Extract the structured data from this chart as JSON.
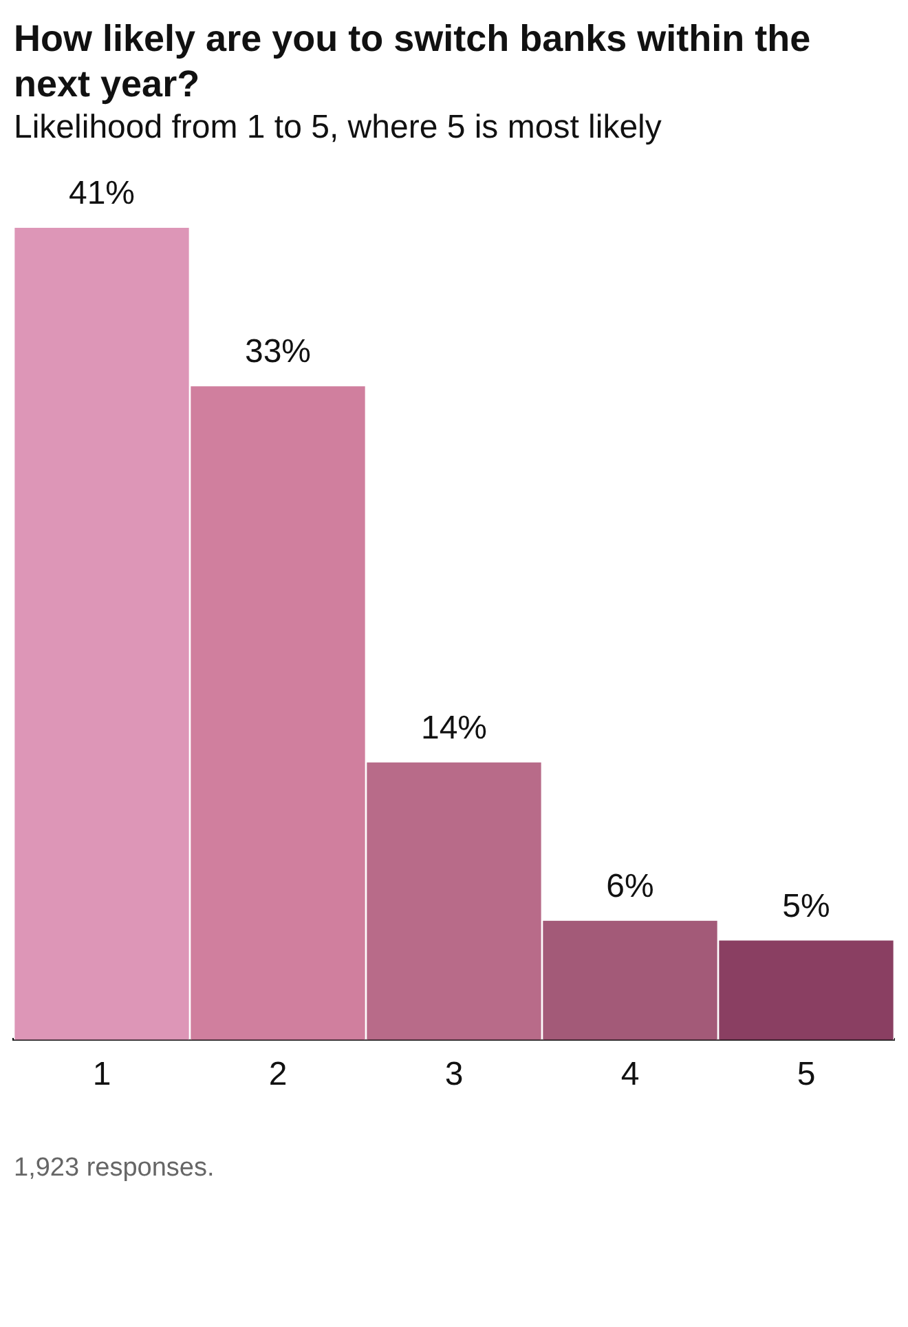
{
  "chart_data": {
    "type": "bar",
    "title": "How likely are you to switch banks within the next year?",
    "subtitle": "Likelihood from 1 to 5, where 5 is most likely",
    "categories": [
      "1",
      "2",
      "3",
      "4",
      "5"
    ],
    "values": [
      41,
      33,
      14,
      6,
      5
    ],
    "colors": [
      "#dd96b7",
      "#d07f9e",
      "#b86b89",
      "#a35a78",
      "#8a3f62"
    ],
    "value_labels": [
      "41%",
      "33%",
      "14%",
      "6%",
      "5%"
    ],
    "grid": false,
    "legend": false,
    "annotations": [
      "1,923 responses."
    ]
  }
}
